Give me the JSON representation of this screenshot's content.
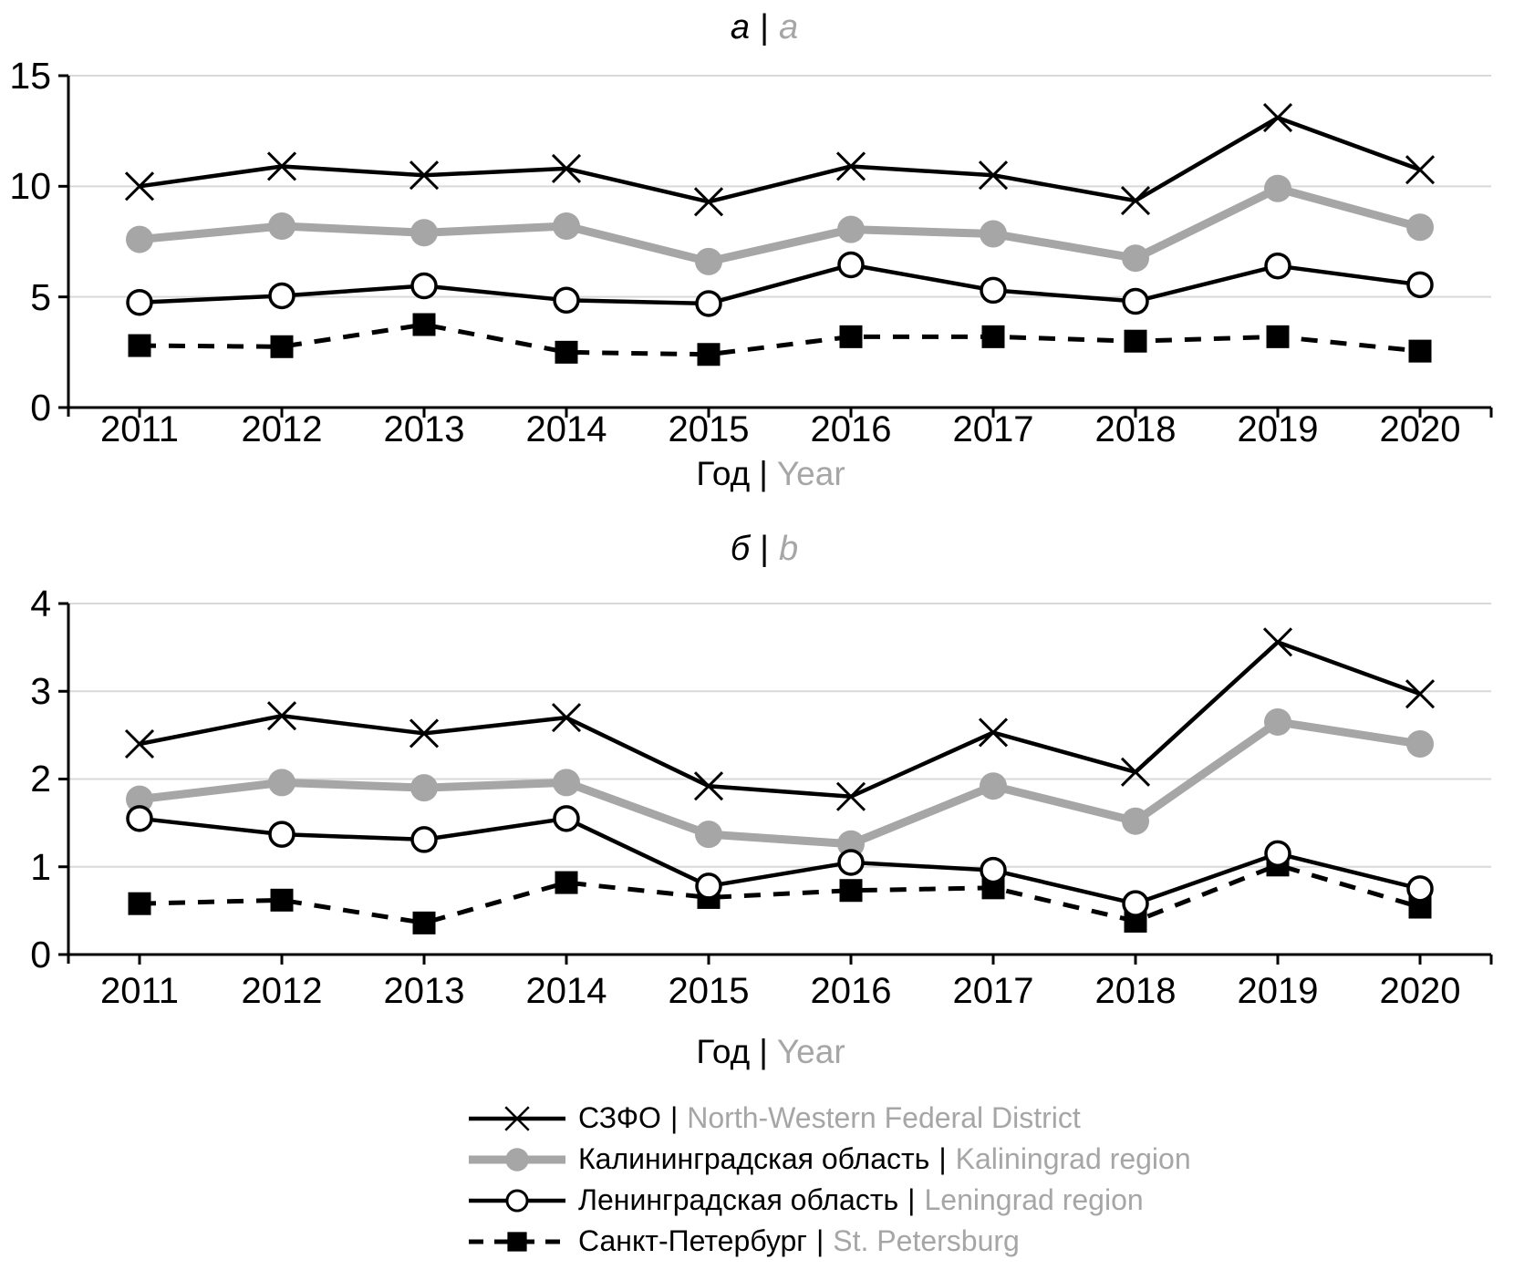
{
  "figure": {
    "sep": "|",
    "colors": {
      "black": "#000000",
      "gray": "#a6a6a6",
      "grid": "#d9d9d9"
    }
  },
  "chart_data": [
    {
      "id": "a",
      "type": "line",
      "title_ru": "а",
      "title_en": "a",
      "xlabel_ru": "Год",
      "xlabel_en": "Year",
      "x": [
        "2011",
        "2012",
        "2013",
        "2014",
        "2015",
        "2016",
        "2017",
        "2018",
        "2019",
        "2020"
      ],
      "ylim": [
        0,
        15
      ],
      "yticks": [
        "0",
        "5",
        "10",
        "15"
      ],
      "grid": true,
      "legend_position": "shared-bottom",
      "series": [
        {
          "name_ru": "СЗФО",
          "name_en": "North-Western Federal District",
          "style": "black-x",
          "values": [
            10.0,
            10.9,
            10.5,
            10.8,
            9.3,
            10.9,
            10.5,
            9.35,
            13.1,
            10.75
          ]
        },
        {
          "name_ru": "Калининградская область",
          "name_en": "Kaliningrad region",
          "style": "gray-dot",
          "values": [
            7.6,
            8.2,
            7.9,
            8.2,
            6.6,
            8.05,
            7.85,
            6.75,
            9.9,
            8.15
          ]
        },
        {
          "name_ru": "Ленинградская область",
          "name_en": "Leningrad region",
          "style": "black-open-circle",
          "values": [
            4.75,
            5.05,
            5.5,
            4.85,
            4.7,
            6.45,
            5.3,
            4.8,
            6.4,
            5.55
          ]
        },
        {
          "name_ru": "Санкт-Петербург",
          "name_en": "St. Petersburg",
          "style": "black-dash-square",
          "values": [
            2.8,
            2.75,
            3.75,
            2.5,
            2.4,
            3.2,
            3.2,
            3.0,
            3.2,
            2.55
          ]
        }
      ]
    },
    {
      "id": "b",
      "type": "line",
      "title_ru": "б",
      "title_en": "b",
      "xlabel_ru": "Год",
      "xlabel_en": "Year",
      "x": [
        "2011",
        "2012",
        "2013",
        "2014",
        "2015",
        "2016",
        "2017",
        "2018",
        "2019",
        "2020"
      ],
      "ylim": [
        0,
        4
      ],
      "yticks": [
        "0",
        "1",
        "2",
        "3",
        "4"
      ],
      "grid": true,
      "legend_position": "shared-bottom",
      "series": [
        {
          "name_ru": "СЗФО",
          "name_en": "North-Western Federal District",
          "style": "black-x",
          "values": [
            2.4,
            2.72,
            2.52,
            2.7,
            1.92,
            1.8,
            2.53,
            2.08,
            3.56,
            2.97
          ]
        },
        {
          "name_ru": "Калининградская область",
          "name_en": "Kaliningrad region",
          "style": "gray-dot",
          "values": [
            1.77,
            1.96,
            1.9,
            1.96,
            1.37,
            1.26,
            1.92,
            1.52,
            2.65,
            2.4
          ]
        },
        {
          "name_ru": "Ленинградская область",
          "name_en": "Leningrad region",
          "style": "black-open-circle",
          "values": [
            1.55,
            1.37,
            1.31,
            1.55,
            0.78,
            1.05,
            0.96,
            0.58,
            1.15,
            0.75
          ]
        },
        {
          "name_ru": "Санкт-Петербург",
          "name_en": "St. Petersburg",
          "style": "black-dash-square",
          "values": [
            0.58,
            0.62,
            0.36,
            0.82,
            0.65,
            0.73,
            0.76,
            0.38,
            1.02,
            0.54
          ]
        }
      ]
    }
  ],
  "legend": {
    "items": [
      {
        "label_ru": "СЗФО",
        "label_en": "North-Western Federal District",
        "style": "black-x"
      },
      {
        "label_ru": "Калининградская область",
        "label_en": "Kaliningrad region",
        "style": "gray-dot"
      },
      {
        "label_ru": "Ленинградская область",
        "label_en": "Leningrad region",
        "style": "black-open-circle"
      },
      {
        "label_ru": "Санкт-Петербург",
        "label_en": "St. Petersburg",
        "style": "black-dash-square"
      }
    ]
  }
}
